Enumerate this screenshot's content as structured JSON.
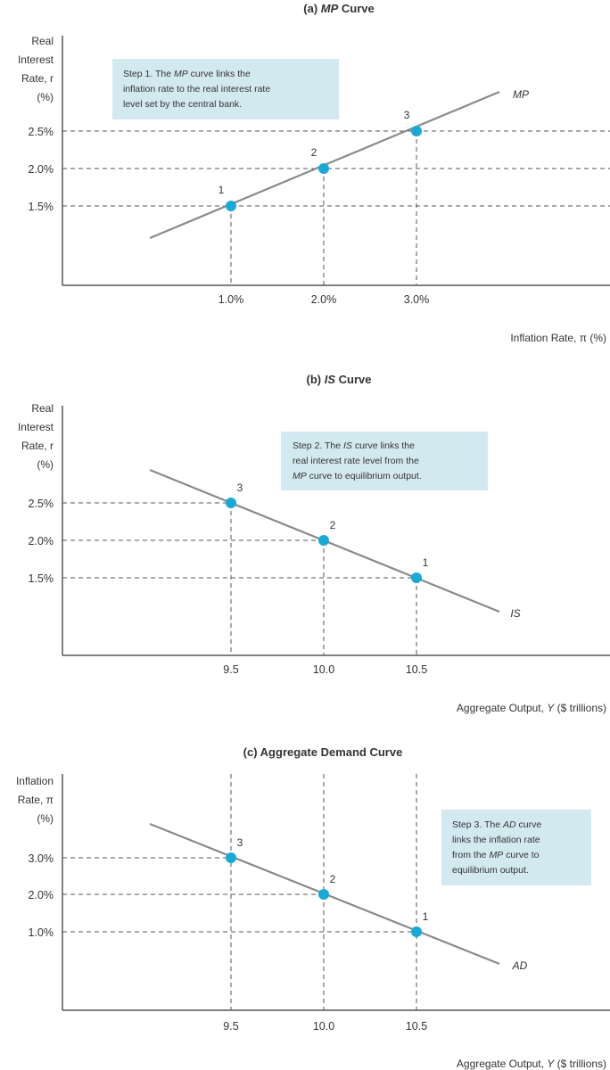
{
  "colors": {
    "point": "#19a9d6",
    "note_box": "#d3e9f0",
    "curve": "#8a8a8a",
    "axis": "#555555"
  },
  "chart_data": [
    {
      "type": "line",
      "title": "(a) MP Curve",
      "title_prefix": "(a) ",
      "title_italic": "MP",
      "title_suffix": " Curve",
      "ylabel_lines": [
        "Real",
        "Interest",
        "Rate, r",
        "(%)"
      ],
      "xlabel": "Inflation Rate, π (%)",
      "curve_label": "MP",
      "x_ticks": [
        "1.0%",
        "2.0%",
        "3.0%"
      ],
      "y_ticks": [
        "1.5%",
        "2.0%",
        "2.5%"
      ],
      "x": [
        1.0,
        2.0,
        3.0
      ],
      "y": [
        1.5,
        2.0,
        2.5
      ],
      "point_labels": [
        "1",
        "2",
        "3"
      ],
      "note_lines": [
        "Step 1. The MP curve links the",
        "inflation rate to the real interest rate",
        "level set by the central bank."
      ]
    },
    {
      "type": "line",
      "title": "(b) IS Curve",
      "title_prefix": "(b) ",
      "title_italic": "IS",
      "title_suffix": " Curve",
      "ylabel_lines": [
        "Real",
        "Interest",
        "Rate, r",
        "(%)"
      ],
      "xlabel": "Aggregate Output, Y ($ trillions)",
      "curve_label": "IS",
      "x_ticks": [
        "9.5",
        "10.0",
        "10.5"
      ],
      "y_ticks": [
        "1.5%",
        "2.0%",
        "2.5%"
      ],
      "x": [
        10.5,
        10.0,
        9.5
      ],
      "y": [
        1.5,
        2.0,
        2.5
      ],
      "point_labels": [
        "1",
        "2",
        "3"
      ],
      "note_lines": [
        "Step 2. The IS curve links the",
        "real interest rate level from the",
        "MP curve to equilibrium output."
      ]
    },
    {
      "type": "line",
      "title": "(c) Aggregate Demand Curve",
      "title_prefix": "(c) Aggregate Demand Curve",
      "title_italic": "",
      "title_suffix": "",
      "ylabel_lines": [
        "Inflation",
        "Rate, π",
        "(%)"
      ],
      "xlabel": "Aggregate Output, Y ($ trillions)",
      "curve_label": "AD",
      "x_ticks": [
        "9.5",
        "10.0",
        "10.5"
      ],
      "y_ticks": [
        "1.0%",
        "2.0%",
        "3.0%"
      ],
      "x": [
        10.5,
        10.0,
        9.5
      ],
      "y": [
        1.0,
        2.0,
        3.0
      ],
      "point_labels": [
        "1",
        "2",
        "3"
      ],
      "note_lines": [
        "Step 3. The AD curve",
        "links the inflation rate",
        "from the MP curve to",
        "equilibrium output."
      ]
    }
  ]
}
